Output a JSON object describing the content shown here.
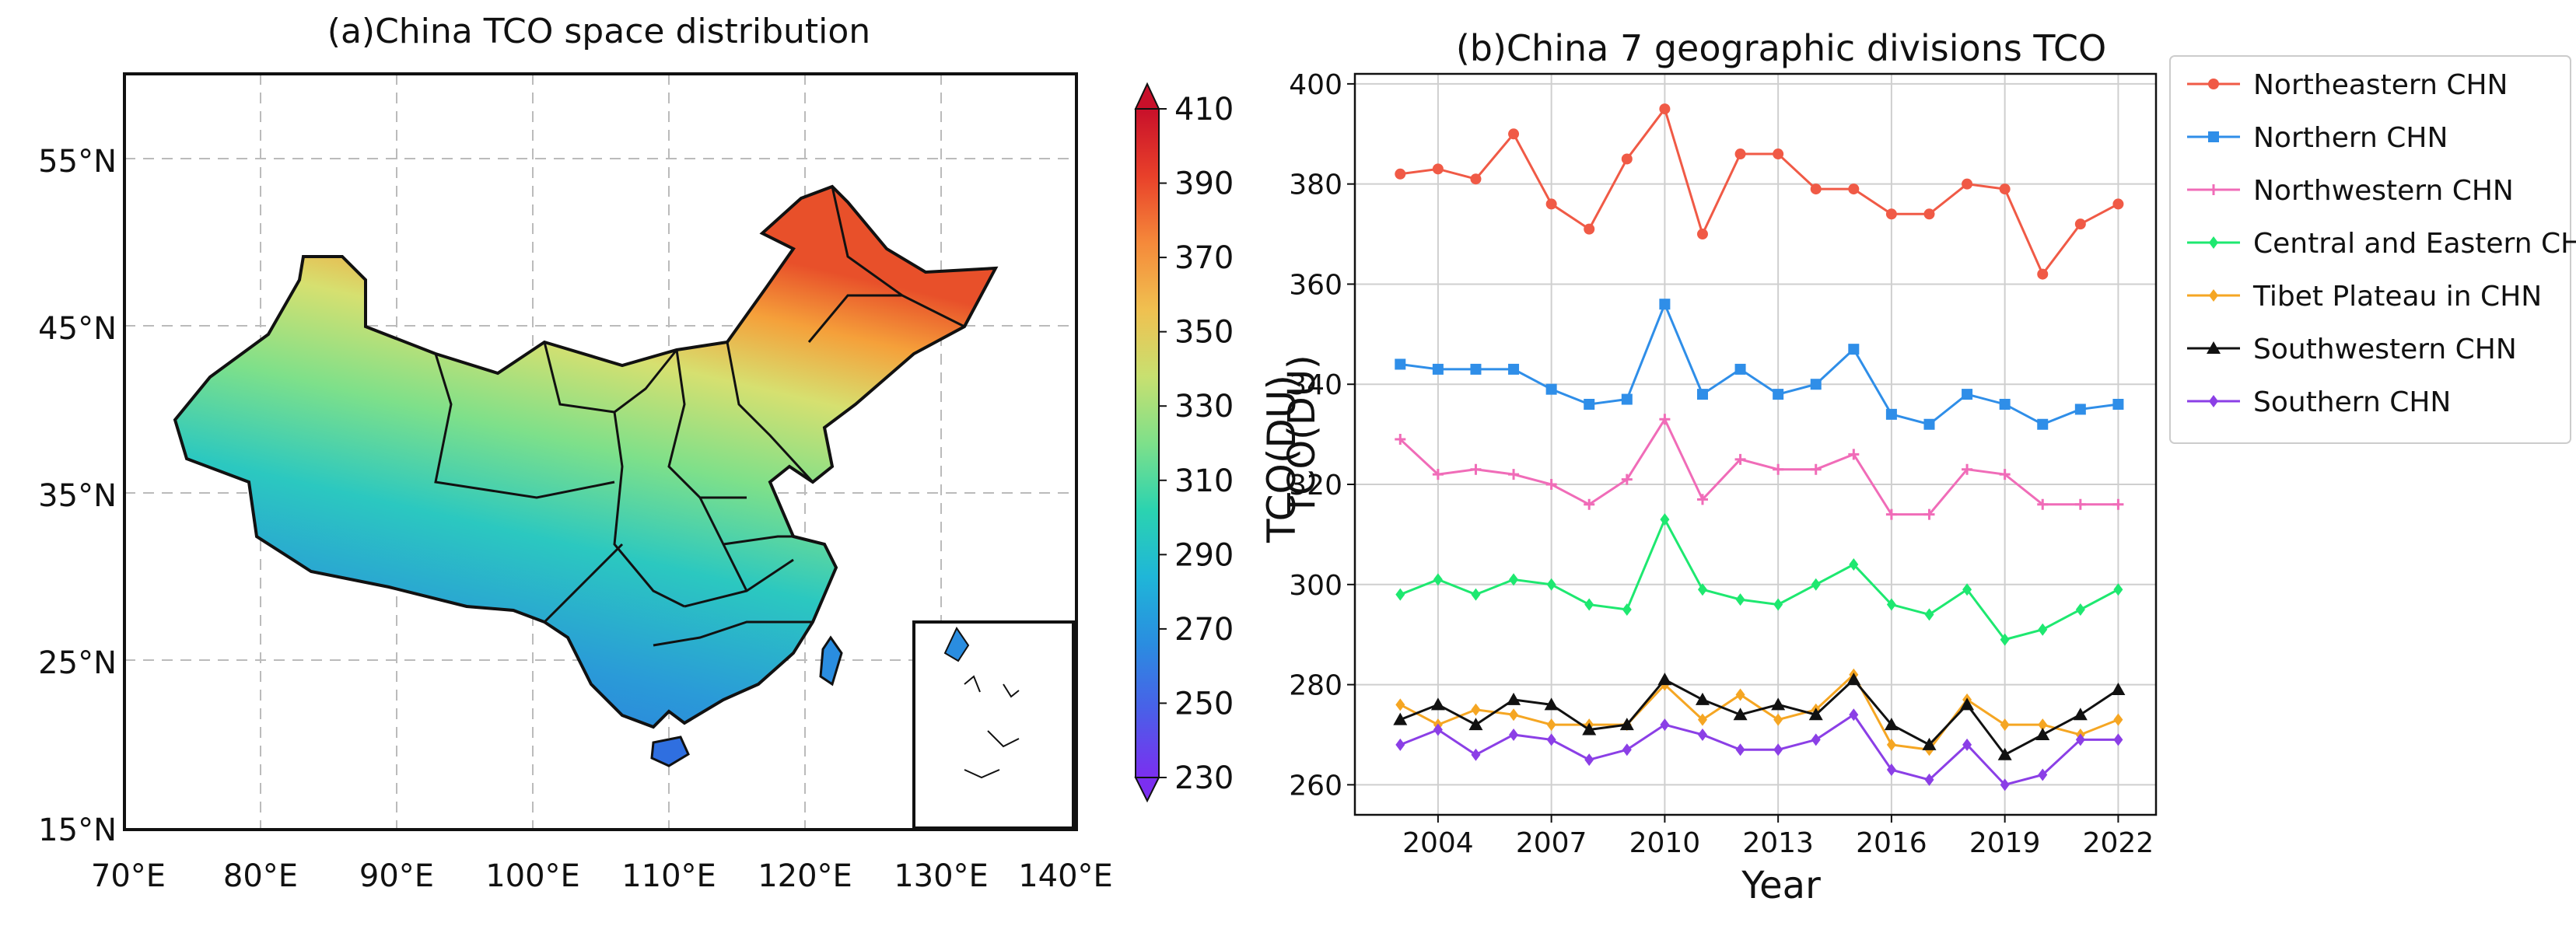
{
  "figure": {
    "left_title": "(a)China TCO space distribution",
    "right_title": "(b)China 7 geographic divisions TCO"
  },
  "map": {
    "lon_ticks": [
      "70°E",
      "80°E",
      "90°E",
      "100°E",
      "110°E",
      "120°E",
      "130°E",
      "140°E"
    ],
    "lat_ticks": [
      "15°N",
      "25°N",
      "35°N",
      "45°N",
      "55°N"
    ],
    "colorbar": {
      "label": "TCO(DU)",
      "ticks": [
        "230",
        "250",
        "270",
        "290",
        "310",
        "330",
        "350",
        "370",
        "390",
        "410"
      ],
      "colors": [
        "#7b2ff0",
        "#4a5fe8",
        "#2a8de0",
        "#1fb6d8",
        "#2bd3b0",
        "#7ee08a",
        "#c8e070",
        "#f0c050",
        "#f5893a",
        "#e8402a",
        "#c8102a"
      ]
    }
  },
  "chart_data": {
    "type": "line",
    "title": "(b)China 7 geographic divisions TCO",
    "xlabel": "Year",
    "ylabel": "TCO(DU)",
    "x": [
      2003,
      2004,
      2005,
      2006,
      2007,
      2008,
      2009,
      2010,
      2011,
      2012,
      2013,
      2014,
      2015,
      2016,
      2017,
      2018,
      2019,
      2020,
      2021,
      2022
    ],
    "xticks": [
      "2004",
      "2007",
      "2010",
      "2013",
      "2016",
      "2019",
      "2022"
    ],
    "xlim": [
      2001.8,
      2023.0
    ],
    "yticks": [
      "260",
      "280",
      "300",
      "320",
      "340",
      "360",
      "380",
      "400"
    ],
    "ylim": [
      254,
      402
    ],
    "grid": true,
    "legend_position": "outside-right",
    "series": [
      {
        "name": "Northeastern CHN",
        "color": "#f05a46",
        "marker": "circle",
        "values": [
          382,
          383,
          381,
          390,
          376,
          371,
          385,
          395,
          370,
          386,
          386,
          379,
          379,
          374,
          374,
          380,
          379,
          362,
          372,
          376
        ]
      },
      {
        "name": "Northern CHN",
        "color": "#2f8ee8",
        "marker": "square",
        "values": [
          344,
          343,
          343,
          343,
          339,
          336,
          337,
          356,
          338,
          343,
          338,
          340,
          347,
          334,
          332,
          338,
          336,
          332,
          335,
          336
        ]
      },
      {
        "name": "Northwestern CHN",
        "color": "#f06cb8",
        "marker": "plus",
        "values": [
          329,
          322,
          323,
          322,
          320,
          316,
          321,
          333,
          317,
          325,
          323,
          323,
          326,
          314,
          314,
          323,
          322,
          316,
          316,
          316
        ]
      },
      {
        "name": "Central and Eastern CHN",
        "color": "#1ee870",
        "marker": "diamond",
        "values": [
          298,
          301,
          298,
          301,
          300,
          296,
          295,
          313,
          299,
          297,
          296,
          300,
          304,
          296,
          294,
          299,
          289,
          291,
          295,
          299
        ]
      },
      {
        "name": "Tibet Plateau in CHN",
        "color": "#f5a623",
        "marker": "diamond",
        "values": [
          276,
          272,
          275,
          274,
          272,
          272,
          272,
          280,
          273,
          278,
          273,
          275,
          282,
          268,
          267,
          277,
          272,
          272,
          270,
          273
        ]
      },
      {
        "name": "Southwestern CHN",
        "color": "#111111",
        "marker": "triangle",
        "values": [
          273,
          276,
          272,
          277,
          276,
          271,
          272,
          281,
          277,
          274,
          276,
          274,
          281,
          272,
          268,
          276,
          266,
          270,
          274,
          279
        ]
      },
      {
        "name": "Southern CHN",
        "color": "#8b3fe6",
        "marker": "diamond",
        "values": [
          268,
          271,
          266,
          270,
          269,
          265,
          267,
          272,
          270,
          267,
          267,
          269,
          274,
          263,
          261,
          268,
          260,
          262,
          269,
          269
        ]
      }
    ]
  }
}
